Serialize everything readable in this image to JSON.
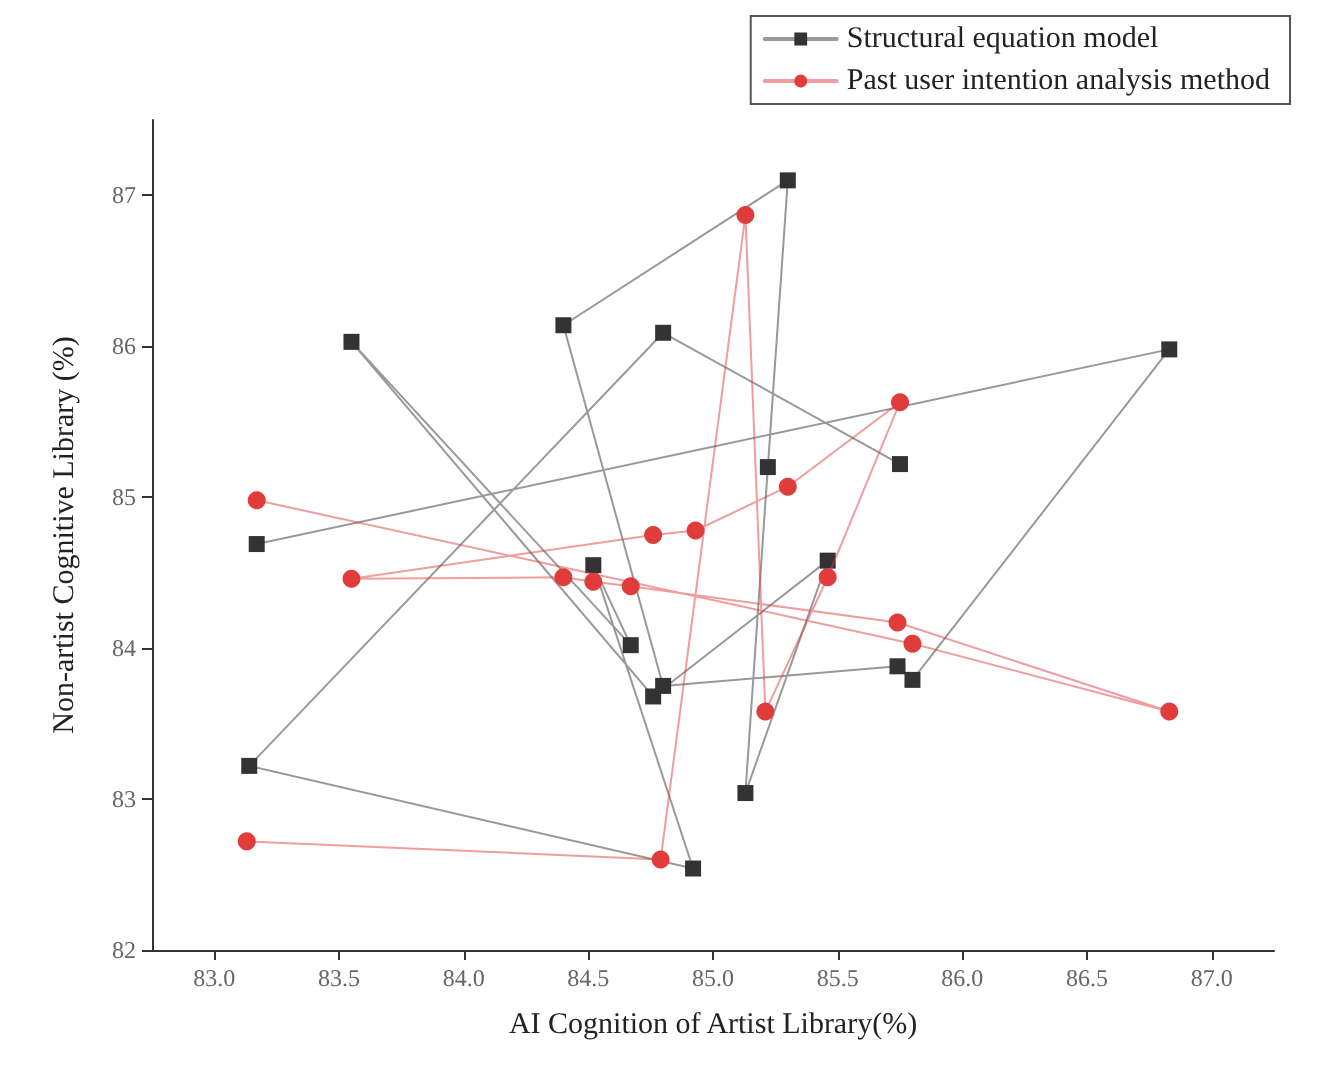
{
  "chart_data": {
    "type": "line",
    "xlabel": "AI Cognition of Artist Library(%)",
    "ylabel": "Non-artist Cognitive Library (%)",
    "xlim": [
      82.75,
      87.25
    ],
    "ylim": [
      82,
      87.5
    ],
    "xticks": [
      {
        "value": 83,
        "label": "83.0"
      },
      {
        "value": 83.5,
        "label": "83.5"
      },
      {
        "value": 84,
        "label": "84.0"
      },
      {
        "value": 84.5,
        "label": "84.5"
      },
      {
        "value": 85,
        "label": "85.0"
      },
      {
        "value": 85.5,
        "label": "85.5"
      },
      {
        "value": 86,
        "label": "86.0"
      },
      {
        "value": 86.5,
        "label": "86.5"
      },
      {
        "value": 87,
        "label": "87.0"
      }
    ],
    "yticks": [
      82,
      83,
      84,
      85,
      86,
      87
    ],
    "grid": false,
    "legend": "top right",
    "line_style": "solid",
    "series": [
      {
        "name": "Structural equation model",
        "color": "#333333",
        "marker": "square",
        "x": [
          83.17,
          86.83,
          85.8,
          85.74,
          84.8,
          84.4,
          85.3,
          85.22,
          85.13,
          85.46,
          84.76,
          83.55,
          84.67,
          84.52,
          84.92,
          83.14,
          84.8,
          85.75
        ],
        "values": [
          84.69,
          85.98,
          83.79,
          83.88,
          83.75,
          86.14,
          87.1,
          85.2,
          83.04,
          84.58,
          83.68,
          86.03,
          84.02,
          84.55,
          82.54,
          83.22,
          86.09,
          85.22
        ]
      },
      {
        "name": "Past user intention analysis method",
        "color": "#e03c3c",
        "marker": "circle",
        "x": [
          83.17,
          85.8,
          86.83,
          85.74,
          84.67,
          84.52,
          84.4,
          83.55,
          84.76,
          84.93,
          85.3,
          85.75,
          85.46,
          85.21,
          85.13,
          84.79,
          83.13
        ],
        "values": [
          84.98,
          84.03,
          83.58,
          84.17,
          84.41,
          84.44,
          84.47,
          84.46,
          84.75,
          84.78,
          85.07,
          85.63,
          84.47,
          83.58,
          86.87,
          82.6,
          82.72
        ]
      }
    ]
  }
}
